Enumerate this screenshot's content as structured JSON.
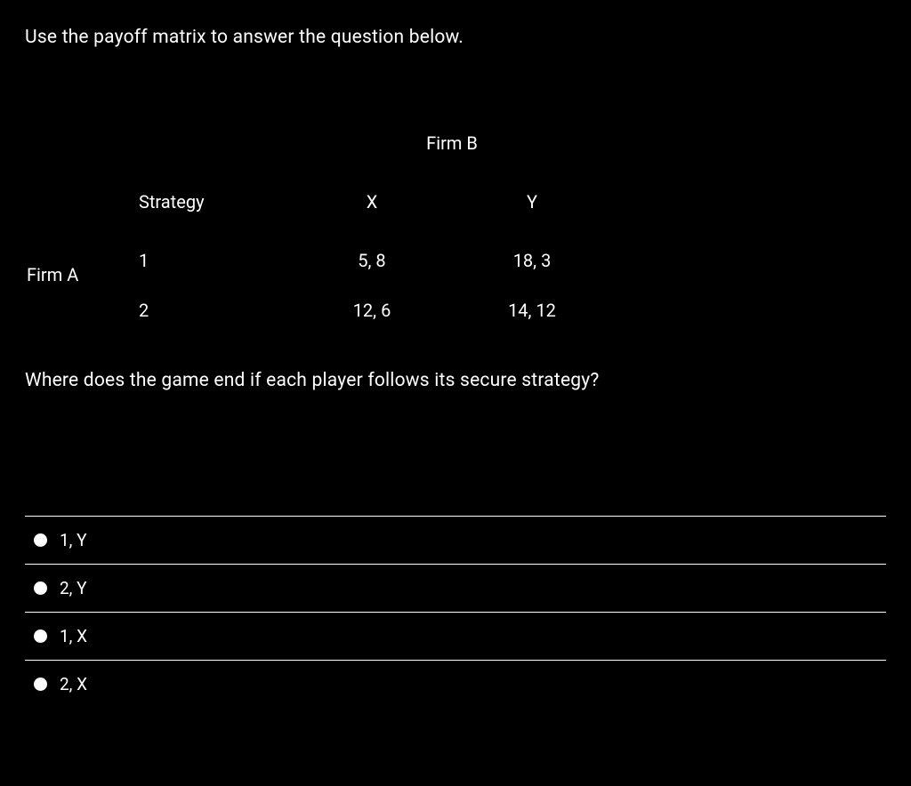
{
  "prompt": "Use the payoff matrix to answer the question below.",
  "matrix": {
    "row_player": "Firm A",
    "col_player": "Firm B",
    "header": {
      "strategy": "Strategy",
      "col1": "X",
      "col2": "Y"
    },
    "rows": [
      {
        "strategy": "1",
        "col1": "5, 8",
        "col2": "18, 3"
      },
      {
        "strategy": "2",
        "col1": "12, 6",
        "col2": "14, 12"
      }
    ]
  },
  "question": "Where does the game end if each player follows its secure strategy?",
  "options": [
    {
      "label": "1, Y"
    },
    {
      "label": "2, Y"
    },
    {
      "label": "1, X"
    },
    {
      "label": "2, X"
    }
  ],
  "style": {
    "background_color": "#000000",
    "text_color": "#ffffff",
    "divider_color": "#ffffff",
    "radio_fill": "#ffffff",
    "base_fontsize": 20
  }
}
